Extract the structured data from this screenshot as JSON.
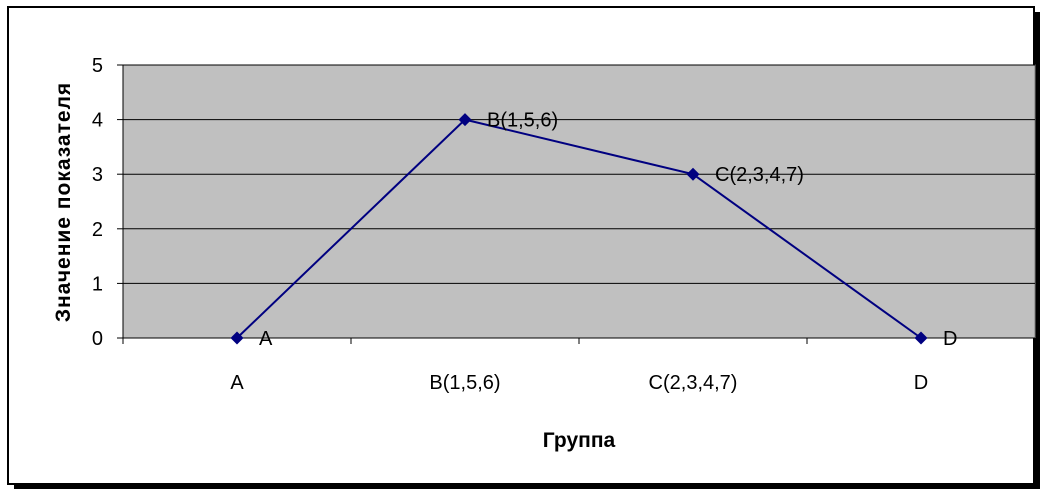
{
  "chart_data": {
    "type": "line",
    "categories": [
      "A",
      "B(1,5,6)",
      "C(2,3,4,7)",
      "D"
    ],
    "series": [
      {
        "values": [
          0,
          4,
          3,
          0
        ]
      }
    ],
    "point_labels": [
      "A",
      "B(1,5,6)",
      "C(2,3,4,7)",
      "D"
    ],
    "xlabel": "Группа",
    "ylabel": "Значение показателя",
    "yticks": [
      "0",
      "1",
      "2",
      "3",
      "4",
      "5"
    ],
    "ylim": [
      0,
      5
    ],
    "grid": true,
    "legend": "none",
    "colors": {
      "plot_area": "#c0c0c0",
      "series": "#000080",
      "gridline": "#000000",
      "frame": "#000000"
    }
  }
}
